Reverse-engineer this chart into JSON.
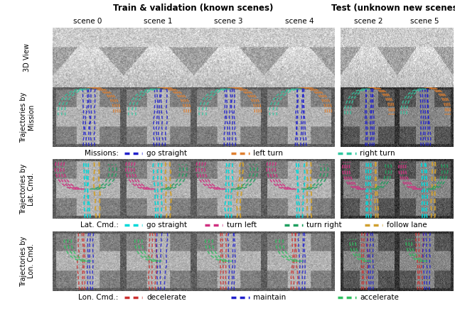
{
  "title_train": "Train & validation (known scenes)",
  "title_test": "Test (unknown new scenes)",
  "scene_labels_train": [
    "scene 0",
    "scene 1",
    "scene 3",
    "scene 4"
  ],
  "scene_labels_test": [
    "scene 2",
    "scene 5"
  ],
  "row_labels": [
    "3D View",
    "Trajectories by\nMission",
    "Trajectories by\nLat. Cmd.",
    "Trajectories by\nLon. Cmd."
  ],
  "legend_missions": {
    "label": "Missions:",
    "items": [
      {
        "text": "go straight",
        "color": "#2020cc"
      },
      {
        "text": "left turn",
        "color": "#e08030"
      },
      {
        "text": "right turn",
        "color": "#30c8a0"
      }
    ]
  },
  "legend_lat": {
    "label": "Lat. Cmd.:",
    "items": [
      {
        "text": "go straight",
        "color": "#00d8d8"
      },
      {
        "text": "turn left",
        "color": "#d03080"
      },
      {
        "text": "turn right",
        "color": "#20a060"
      },
      {
        "text": "follow lane",
        "color": "#d0a030"
      }
    ]
  },
  "legend_lon": {
    "label": "Lon. Cmd.:",
    "items": [
      {
        "text": "decelerate",
        "color": "#cc3030"
      },
      {
        "text": "maintain",
        "color": "#2020cc"
      },
      {
        "text": "accelerate",
        "color": "#30c060"
      }
    ]
  },
  "header_bg": "#e8e8e8",
  "outer_bg": "#ffffff",
  "legend_bg": "#d8d8d8",
  "title_fontsize": 8.5,
  "scene_fontsize": 7.5,
  "row_label_fontsize": 7.0,
  "legend_fontsize": 7.5
}
